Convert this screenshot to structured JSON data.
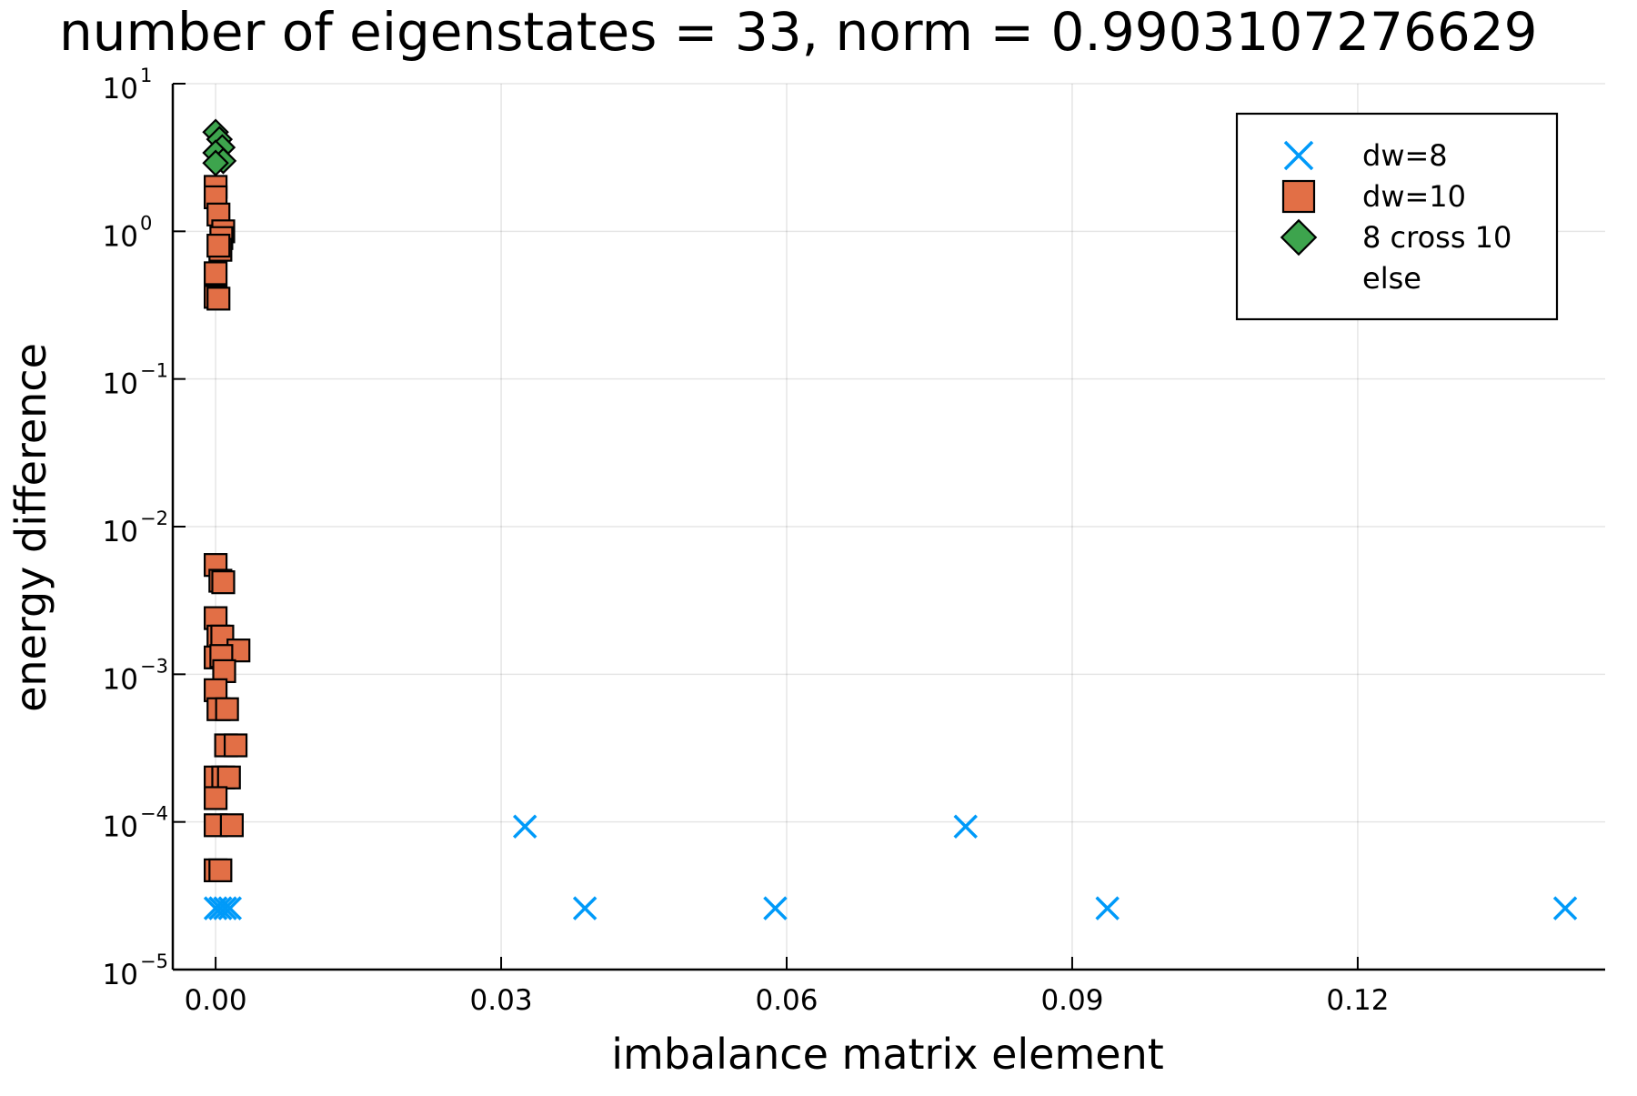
{
  "chart_data": {
    "type": "scatter",
    "title": "number of eigenstates = 33, norm = 0.9903107276629",
    "xlabel": "imbalance matrix element",
    "ylabel": "energy difference",
    "xlim": [
      -0.0045,
      0.146
    ],
    "ylim": [
      1e-05,
      10
    ],
    "xscale": "linear",
    "yscale": "log",
    "grid": true,
    "legend_position": "top-right",
    "x_ticks": [
      {
        "value": 0.0,
        "label": "0.00"
      },
      {
        "value": 0.03,
        "label": "0.03"
      },
      {
        "value": 0.06,
        "label": "0.06"
      },
      {
        "value": 0.09,
        "label": "0.09"
      },
      {
        "value": 0.12,
        "label": "0.12"
      }
    ],
    "y_ticks": [
      {
        "value": 1e-05,
        "base": "10",
        "exp": "−5"
      },
      {
        "value": 0.0001,
        "base": "10",
        "exp": "−4"
      },
      {
        "value": 0.001,
        "base": "10",
        "exp": "−3"
      },
      {
        "value": 0.01,
        "base": "10",
        "exp": "−2"
      },
      {
        "value": 0.1,
        "base": "10",
        "exp": "−1"
      },
      {
        "value": 1,
        "base": "10",
        "exp": "0"
      },
      {
        "value": 10,
        "base": "10",
        "exp": "1"
      }
    ],
    "series": [
      {
        "name": "dw=8",
        "marker": "x",
        "color": "#009af9",
        "points": [
          {
            "x": 0.0,
            "y": 2.6e-05
          },
          {
            "x": 0.0005,
            "y": 2.6e-05
          },
          {
            "x": 0.001,
            "y": 2.6e-05
          },
          {
            "x": 0.0015,
            "y": 2.6e-05
          },
          {
            "x": 0.0325,
            "y": 9.3e-05
          },
          {
            "x": 0.0388,
            "y": 2.6e-05
          },
          {
            "x": 0.0588,
            "y": 2.6e-05
          },
          {
            "x": 0.0788,
            "y": 9.3e-05
          },
          {
            "x": 0.0937,
            "y": 2.6e-05
          },
          {
            "x": 0.1418,
            "y": 2.6e-05
          }
        ]
      },
      {
        "name": "dw=10",
        "marker": "square",
        "color": "#e26f46",
        "points": [
          {
            "x": 0.0,
            "y": 2.0
          },
          {
            "x": 0.0,
            "y": 1.7
          },
          {
            "x": 0.0003,
            "y": 1.3
          },
          {
            "x": 0.0008,
            "y": 1.0
          },
          {
            "x": 0.0006,
            "y": 0.9
          },
          {
            "x": 0.0005,
            "y": 0.75
          },
          {
            "x": 0.0003,
            "y": 0.8
          },
          {
            "x": 0.0,
            "y": 0.52
          },
          {
            "x": 0.0,
            "y": 0.36
          },
          {
            "x": 0.0003,
            "y": 0.35
          },
          {
            "x": 0.0,
            "y": 0.0055
          },
          {
            "x": 0.0005,
            "y": 0.0043
          },
          {
            "x": 0.0008,
            "y": 0.0042
          },
          {
            "x": 0.0,
            "y": 0.0024
          },
          {
            "x": 0.0003,
            "y": 0.0018
          },
          {
            "x": 0.0007,
            "y": 0.0018
          },
          {
            "x": 0.0024,
            "y": 0.00145
          },
          {
            "x": 0.0,
            "y": 0.0013
          },
          {
            "x": 0.0006,
            "y": 0.00133
          },
          {
            "x": 0.0009,
            "y": 0.00105
          },
          {
            "x": 0.0,
            "y": 0.00078
          },
          {
            "x": 0.0003,
            "y": 0.00058
          },
          {
            "x": 0.0012,
            "y": 0.00058
          },
          {
            "x": 0.0011,
            "y": 0.00033
          },
          {
            "x": 0.0021,
            "y": 0.00033
          },
          {
            "x": 0.0,
            "y": 0.0002
          },
          {
            "x": 0.0008,
            "y": 0.0002
          },
          {
            "x": 0.0014,
            "y": 0.0002
          },
          {
            "x": 0.0,
            "y": 0.000145
          },
          {
            "x": 0.0,
            "y": 9.5e-05
          },
          {
            "x": 0.0017,
            "y": 9.5e-05
          },
          {
            "x": 0.0,
            "y": 4.7e-05
          },
          {
            "x": 0.0005,
            "y": 4.7e-05
          }
        ]
      },
      {
        "name": "8 cross 10",
        "marker": "diamond",
        "color": "#3da44d",
        "points": [
          {
            "x": 0.0,
            "y": 4.7
          },
          {
            "x": 0.0004,
            "y": 4.2
          },
          {
            "x": 0.0007,
            "y": 3.7
          },
          {
            "x": 0.0,
            "y": 3.4
          },
          {
            "x": 0.0008,
            "y": 3.0
          },
          {
            "x": 0.0,
            "y": 2.9
          }
        ]
      },
      {
        "name": "else",
        "marker": "none",
        "color": "#c271d2",
        "points": []
      }
    ]
  }
}
